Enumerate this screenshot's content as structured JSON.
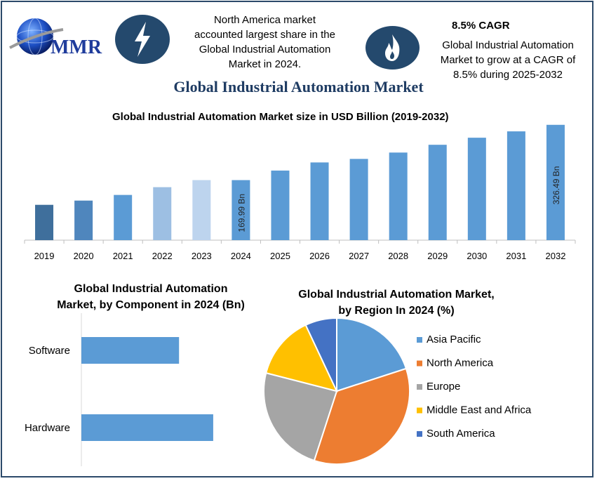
{
  "logo": {
    "text": "MMR"
  },
  "header": {
    "region_note_lines": [
      "North America market",
      "accounted largest share in the",
      "Global Industrial Automation",
      "Market in 2024."
    ],
    "cagr_title": "8.5% CAGR",
    "cagr_note_lines": [
      "Global Industrial Automation",
      "Market to grow at a CAGR of",
      "8.5% during 2025-2032"
    ]
  },
  "main_title": "Global Industrial Automation Market",
  "colors": {
    "bar": "#5b9bd5",
    "dark_blue": "#24496d",
    "title_blue": "#1f3c63"
  },
  "icons": {
    "left": "lightning-bolt-icon",
    "right": "flame-icon"
  },
  "chart_data": [
    {
      "type": "bar",
      "title": "Global Industrial Automation Market size in USD Billion (2019-2032)",
      "categories": [
        "2019",
        "2020",
        "2021",
        "2022",
        "2023",
        "2024",
        "2025",
        "2026",
        "2027",
        "2028",
        "2029",
        "2030",
        "2031",
        "2032"
      ],
      "values": [
        100,
        112,
        128,
        150,
        170,
        169.99,
        197,
        220,
        230,
        248,
        270,
        290,
        308,
        326.49
      ],
      "bar_colors": [
        "#3f6f9c",
        "#4f86bd",
        "#5b9bd5",
        "#9dbfe3",
        "#bdd4ee",
        "#5b9bd5",
        "#5b9bd5",
        "#5b9bd5",
        "#5b9bd5",
        "#5b9bd5",
        "#5b9bd5",
        "#5b9bd5",
        "#5b9bd5",
        "#5b9bd5"
      ],
      "data_labels": [
        {
          "index": 5,
          "text": "169.99 Bn"
        },
        {
          "index": 13,
          "text": "326.49 Bn"
        }
      ],
      "ylim": [
        0,
        330
      ]
    },
    {
      "type": "bar",
      "orientation": "horizontal",
      "title_lines": [
        "Global Industrial Automation",
        "Market, by Component in 2024 (Bn)"
      ],
      "categories": [
        "Software",
        "Hardware"
      ],
      "values": [
        60,
        81
      ],
      "xlim": [
        0,
        100
      ]
    },
    {
      "type": "pie",
      "title_lines": [
        "Global Industrial Automation Market,",
        "by Region In 2024 (%)"
      ],
      "labels": [
        "Asia Pacific",
        "North America",
        "Europe",
        "Middle East and Africa",
        "South America"
      ],
      "values": [
        20,
        35,
        24,
        14,
        7
      ],
      "colors": [
        "#5b9bd5",
        "#ed7d31",
        "#a5a5a5",
        "#ffc000",
        "#4472c4"
      ],
      "legend": "right"
    }
  ]
}
